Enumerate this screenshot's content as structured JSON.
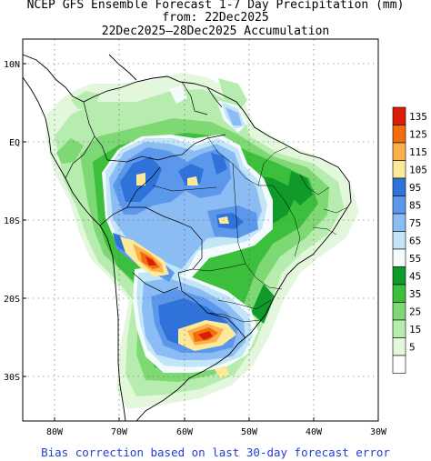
{
  "header": {
    "title": "NCEP GFS Ensemble Forecast 1-7 Day Precipitation (mm)",
    "from_line": "from: 22Dec2025",
    "accum_line": "22Dec2025–28Dec2025 Accumulation"
  },
  "map": {
    "lon_range": [
      -85,
      -30
    ],
    "lat_range": [
      -36,
      14
    ],
    "lat_ticks": [
      "10N",
      "EQ",
      "10S",
      "20S",
      "30S"
    ],
    "lon_ticks": [
      "80W",
      "70W",
      "60W",
      "50W",
      "40W",
      "30W"
    ],
    "grid": "dotted"
  },
  "legend": {
    "levels": [
      {
        "label": "135",
        "color": "#d81e05"
      },
      {
        "label": "125",
        "color": "#f36d0e"
      },
      {
        "label": "115",
        "color": "#fbb04a"
      },
      {
        "label": "105",
        "color": "#fde99a"
      },
      {
        "label": "95",
        "color": "#2f72d9"
      },
      {
        "label": "85",
        "color": "#5b97ea"
      },
      {
        "label": "75",
        "color": "#8bbcf4"
      },
      {
        "label": "65",
        "color": "#c2e6f7"
      },
      {
        "label": "55",
        "color": "#f4fbfd"
      },
      {
        "label": "45",
        "color": "#0f9a2a"
      },
      {
        "label": "35",
        "color": "#3cbf3c"
      },
      {
        "label": "25",
        "color": "#7ed874"
      },
      {
        "label": "15",
        "color": "#b6ecad"
      },
      {
        "label": "5",
        "color": "#e3f7dd"
      },
      {
        "label": "",
        "color": "#ffffff"
      }
    ]
  },
  "footer": {
    "text": "Bias correction based on last 30-day forecast error"
  }
}
